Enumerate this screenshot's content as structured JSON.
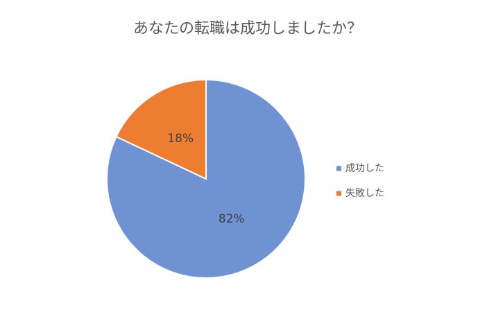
{
  "chart_data": {
    "type": "pie",
    "title": "あなたの転職は成功しましたか？",
    "categories": [
      "成功した",
      "失敗した"
    ],
    "values": [
      82,
      18
    ],
    "value_labels": [
      "82%",
      "18%"
    ],
    "colors": [
      "#6f92d3",
      "#ed7d31"
    ],
    "legend": "right"
  }
}
